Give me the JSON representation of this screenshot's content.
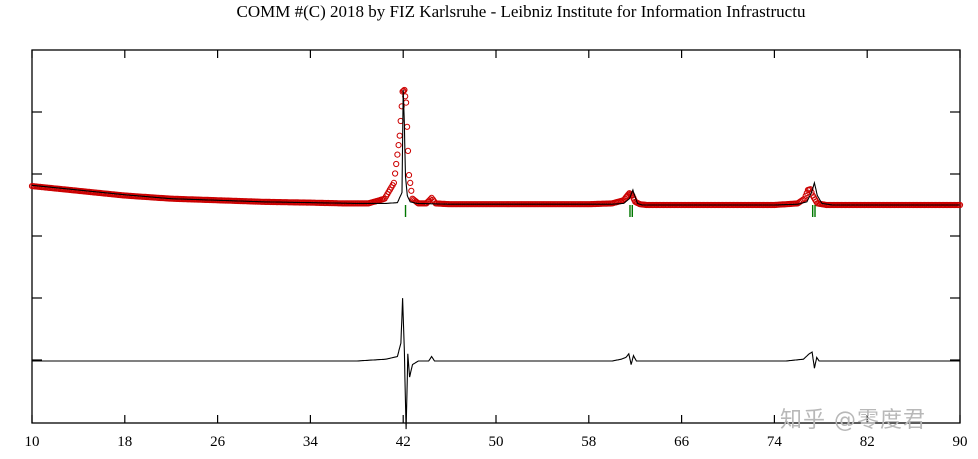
{
  "chart_data": {
    "type": "line",
    "title": "COMM #(C) 2018 by FIZ Karlsruhe - Leibniz Institute for Information Infrastructu",
    "xlabel": "",
    "ylabel": "",
    "xlim": [
      10,
      90
    ],
    "x_ticks": [
      10,
      18,
      26,
      34,
      42,
      50,
      58,
      66,
      74,
      82,
      90
    ],
    "y_tick_count": 5,
    "grid": false,
    "legend": "none",
    "series": [
      {
        "role": "observed",
        "style": "red-circle-markers",
        "color": "#cc0000",
        "x": [
          10,
          14,
          18,
          22,
          26,
          30,
          34,
          37,
          39,
          40.4,
          41.2,
          41.7,
          41.95,
          42.1,
          42.25,
          42.5,
          42.8,
          43.3,
          44,
          44.45,
          44.8,
          46,
          50,
          55,
          58,
          60,
          61,
          61.5,
          61.75,
          62,
          62.4,
          63,
          66,
          70,
          74,
          76,
          76.6,
          76.9,
          77.1,
          77.3,
          77.7,
          78.5,
          82,
          86,
          90
        ],
        "y": [
          0.39,
          0.36,
          0.33,
          0.31,
          0.3,
          0.29,
          0.285,
          0.28,
          0.28,
          0.31,
          0.41,
          0.71,
          0.99,
          1.0,
          0.92,
          0.46,
          0.31,
          0.28,
          0.28,
          0.315,
          0.28,
          0.275,
          0.275,
          0.275,
          0.275,
          0.28,
          0.3,
          0.345,
          0.33,
          0.29,
          0.275,
          0.27,
          0.27,
          0.27,
          0.27,
          0.28,
          0.31,
          0.365,
          0.37,
          0.33,
          0.28,
          0.27,
          0.27,
          0.27,
          0.27
        ]
      },
      {
        "role": "calculated",
        "style": "black-line",
        "color": "#000000",
        "x": [
          10,
          14,
          18,
          22,
          26,
          30,
          34,
          38,
          40.5,
          41.5,
          41.9,
          42.0,
          42.1,
          42.2,
          42.35,
          42.6,
          43.2,
          46,
          50,
          55,
          60,
          61,
          61.5,
          61.8,
          62.0,
          62.2,
          62.6,
          64,
          70,
          74,
          76,
          76.8,
          77.2,
          77.45,
          77.7,
          78.1,
          79,
          82,
          86,
          90
        ],
        "y": [
          0.395,
          0.365,
          0.335,
          0.31,
          0.3,
          0.29,
          0.285,
          0.28,
          0.28,
          0.285,
          0.35,
          1.0,
          0.78,
          0.45,
          0.33,
          0.29,
          0.28,
          0.275,
          0.275,
          0.275,
          0.275,
          0.28,
          0.31,
          0.365,
          0.32,
          0.28,
          0.27,
          0.27,
          0.27,
          0.27,
          0.275,
          0.29,
          0.35,
          0.41,
          0.33,
          0.28,
          0.27,
          0.27,
          0.27,
          0.27
        ]
      },
      {
        "role": "difference",
        "style": "black-line",
        "color": "#000000",
        "x": [
          10,
          20,
          30,
          38,
          40.5,
          41.5,
          41.8,
          41.95,
          42.1,
          42.25,
          42.4,
          42.55,
          42.8,
          43.3,
          44.2,
          44.45,
          44.7,
          46,
          55,
          60,
          60.8,
          61.2,
          61.45,
          61.65,
          61.85,
          62.1,
          63,
          70,
          75,
          76.5,
          77.0,
          77.25,
          77.45,
          77.65,
          77.85,
          78.5,
          82,
          90
        ],
        "y": [
          -0.6,
          -0.6,
          -0.6,
          -0.6,
          -0.59,
          -0.575,
          -0.5,
          -0.25,
          -0.55,
          -0.98,
          -0.56,
          -0.69,
          -0.62,
          -0.6,
          -0.6,
          -0.575,
          -0.6,
          -0.6,
          -0.6,
          -0.6,
          -0.59,
          -0.58,
          -0.56,
          -0.62,
          -0.57,
          -0.6,
          -0.6,
          -0.6,
          -0.6,
          -0.59,
          -0.56,
          -0.55,
          -0.64,
          -0.58,
          -0.6,
          -0.6,
          -0.6,
          -0.6
        ]
      },
      {
        "role": "reflection-markers",
        "style": "green-ticks",
        "color": "#007700",
        "x": [
          42.2,
          61.55,
          61.75,
          77.3,
          77.5
        ]
      }
    ],
    "y_model_range": [
      -1.05,
      1.1
    ]
  },
  "watermark": "知乎 @零度君"
}
